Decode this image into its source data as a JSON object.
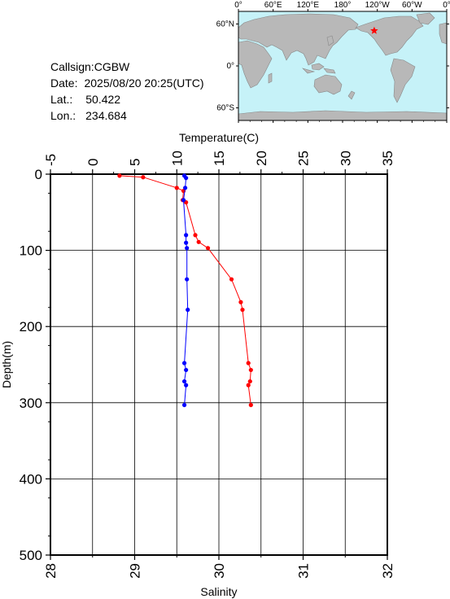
{
  "station": {
    "callsign_label": "Callsign:",
    "callsign": "CGBW",
    "date_label": "Date:",
    "date": "2025/08/20 20:25(UTC)",
    "lat_label": "Lat.:",
    "lat": "50.422",
    "lon_label": "Lon.:",
    "lon": "234.684"
  },
  "map": {
    "top_labels": [
      "0°",
      "60°E",
      "120°E",
      "180°",
      "120°W",
      "60°W",
      "0°"
    ],
    "left_labels": [
      "60°N",
      "0°",
      "60°S"
    ],
    "colors": {
      "ocean": "#c6f2f8",
      "land": "#b8b8b8",
      "marker": "#ff0000"
    },
    "marker": {
      "lon": 234.684,
      "lat": 50.422
    }
  },
  "chart_data": {
    "type": "scatter",
    "yaxis": {
      "label": "Depth(m)",
      "range": [
        0,
        500
      ],
      "ticks": [
        0,
        100,
        200,
        300,
        400,
        500
      ],
      "inverted": true
    },
    "top_axis": {
      "label": "Temperature(C)",
      "range": [
        -5,
        35
      ],
      "ticks": [
        -5,
        0,
        5,
        10,
        15,
        20,
        25,
        30,
        35
      ]
    },
    "bottom_axis": {
      "label": "Salinity",
      "range": [
        28,
        32
      ],
      "ticks": [
        28,
        29,
        30,
        31,
        32
      ]
    },
    "grid": true,
    "series": [
      {
        "name": "Temperature",
        "axis": "top",
        "color": "#ff0000",
        "points": [
          [
            3.2,
            2
          ],
          [
            6.0,
            4
          ],
          [
            10.0,
            18
          ],
          [
            10.8,
            22
          ],
          [
            10.7,
            34
          ],
          [
            11.1,
            37
          ],
          [
            12.2,
            80
          ],
          [
            12.6,
            89
          ],
          [
            13.7,
            97
          ],
          [
            16.5,
            138
          ],
          [
            17.6,
            168
          ],
          [
            17.8,
            178
          ],
          [
            18.5,
            248
          ],
          [
            18.8,
            257
          ],
          [
            18.7,
            272
          ],
          [
            18.5,
            277
          ],
          [
            18.8,
            303
          ]
        ]
      },
      {
        "name": "Salinity",
        "axis": "bottom",
        "color": "#0000ff",
        "points": [
          [
            29.59,
            2
          ],
          [
            29.61,
            5
          ],
          [
            29.6,
            18
          ],
          [
            29.58,
            34
          ],
          [
            29.61,
            80
          ],
          [
            29.61,
            90
          ],
          [
            29.62,
            97
          ],
          [
            29.62,
            138
          ],
          [
            29.63,
            178
          ],
          [
            29.59,
            248
          ],
          [
            29.61,
            257
          ],
          [
            29.59,
            272
          ],
          [
            29.61,
            277
          ],
          [
            29.59,
            303
          ]
        ]
      }
    ]
  }
}
